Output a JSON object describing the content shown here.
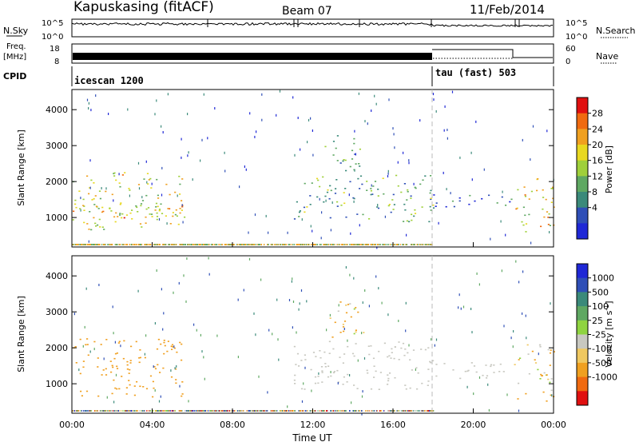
{
  "header": {
    "station": "Kapuskasing (fitACF)",
    "beam": "Beam 07",
    "date": "11/Feb/2014"
  },
  "strip_labels": {
    "nsky": "N.Sky",
    "freq_line1": "Freq.",
    "freq_line2": "[MHz]",
    "cpid": "CPID",
    "nsearch": "N.Search",
    "nave": "Nave",
    "nsky_ticks": [
      "10^5",
      "10^0"
    ],
    "freq_ticks": [
      "18",
      "8"
    ],
    "nave_ticks": [
      "60",
      "0"
    ]
  },
  "cpid_segments": [
    {
      "label": "icescan 1200",
      "start": 0.0
    },
    {
      "label": "tau (fast) 503",
      "start": 18.0
    }
  ],
  "colors": {
    "power_scale": [
      "#1f28d6",
      "#2f4fb7",
      "#3b8a7a",
      "#5fa862",
      "#9fd03a",
      "#e8d820",
      "#f0a020",
      "#f06a10",
      "#e01010"
    ],
    "velocity_scale": [
      "#1f28d6",
      "#2f4fb7",
      "#3b8a7a",
      "#5fa862",
      "#8fd440",
      "#c8c8c0",
      "#f0c860",
      "#f0a020",
      "#f06a10",
      "#e01010"
    ]
  },
  "chart_data": [
    {
      "type": "heatmap",
      "name": "power",
      "xlabel": "",
      "ylabel": "Slant Range [km]",
      "xlim": [
        0,
        24
      ],
      "ylim": [
        180,
        4560
      ],
      "yticks": [
        1000,
        2000,
        3000,
        4000
      ],
      "colorbar": {
        "label": "Power [dB]",
        "ticks": [
          "28",
          "24",
          "20",
          "16",
          "12",
          "8",
          "4"
        ],
        "range": [
          0,
          32
        ]
      },
      "regions": [
        {
          "t0": 0.0,
          "t1": 5.5,
          "r0": 650,
          "r1": 2300,
          "value": 18
        },
        {
          "t0": 0.0,
          "t1": 5.8,
          "r0": 900,
          "r1": 1400,
          "value": 22
        },
        {
          "t0": 11.0,
          "t1": 18.0,
          "r0": 900,
          "r1": 2200,
          "value": 12
        },
        {
          "t0": 12.5,
          "t1": 14.5,
          "r0": 2300,
          "r1": 3300,
          "value": 10
        },
        {
          "t0": 18.0,
          "t1": 22.0,
          "r0": 1300,
          "r1": 1700,
          "value": 6
        },
        {
          "t0": 22.0,
          "t1": 24.0,
          "r0": 500,
          "r1": 2100,
          "value": 20
        }
      ]
    },
    {
      "type": "heatmap",
      "name": "velocity",
      "xlabel": "Time UT",
      "ylabel": "Slant Range [km]",
      "xlim": [
        0,
        24
      ],
      "ylim": [
        180,
        4560
      ],
      "xticks": [
        "00:00",
        "04:00",
        "08:00",
        "12:00",
        "16:00",
        "20:00",
        "00:00"
      ],
      "yticks": [
        1000,
        2000,
        3000,
        4000
      ],
      "colorbar": {
        "label": "Velocity [m s^-1]",
        "ticks": [
          "1000",
          "500",
          "100",
          "25",
          "-25",
          "-100",
          "-500",
          "-1000"
        ]
      },
      "regions": [
        {
          "t0": 0.0,
          "t1": 5.5,
          "r0": 650,
          "r1": 2300,
          "value": -300
        },
        {
          "t0": 11.0,
          "t1": 18.0,
          "r0": 850,
          "r1": 2200,
          "value": 0
        },
        {
          "t0": 12.5,
          "t1": 14.5,
          "r0": 2300,
          "r1": 3300,
          "value": -100
        },
        {
          "t0": 18.0,
          "t1": 22.0,
          "r0": 1150,
          "r1": 1650,
          "value": 0
        },
        {
          "t0": 22.0,
          "t1": 24.0,
          "r0": 500,
          "r1": 2100,
          "value": -80
        }
      ]
    }
  ]
}
